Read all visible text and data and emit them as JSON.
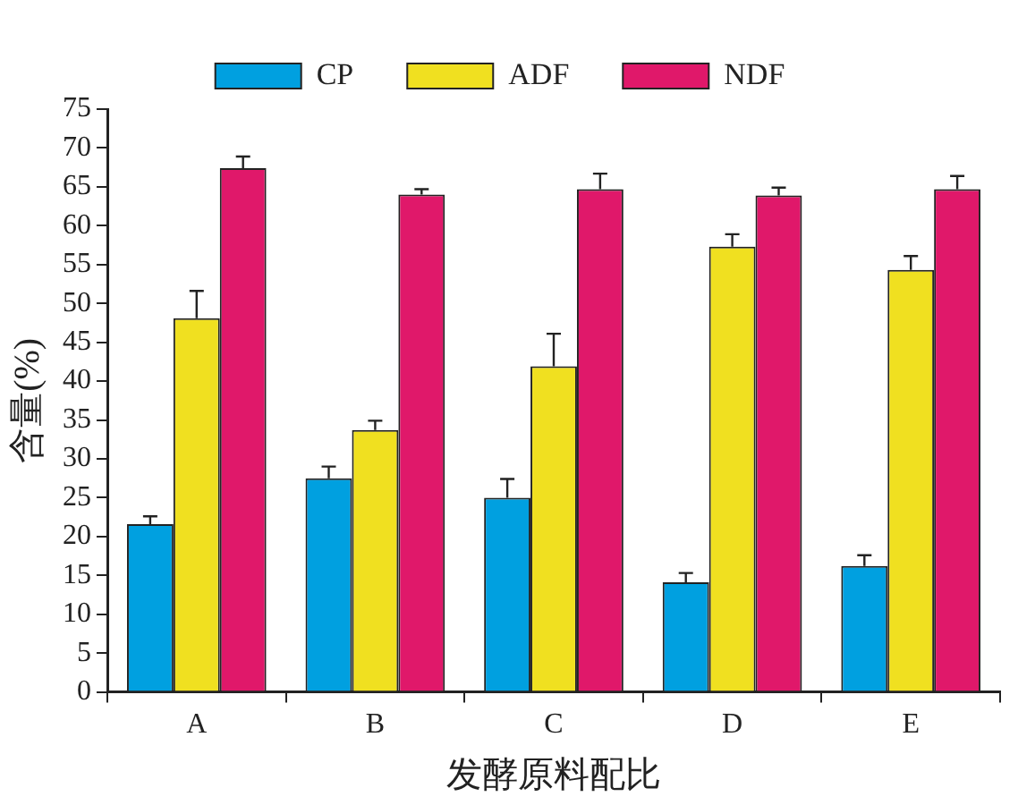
{
  "chart_data": {
    "type": "bar",
    "xlabel": "发酵原料配比",
    "ylabel": "含量(%)",
    "categories": [
      "A",
      "B",
      "C",
      "D",
      "E"
    ],
    "series": [
      {
        "name": "CP",
        "color": "#00a0e0",
        "values": [
          21.6,
          27.5,
          25.0,
          14.1,
          16.2
        ],
        "errors": [
          [
            21.6,
            22.6
          ],
          [
            27.5,
            29.0
          ],
          [
            25.0,
            27.4
          ],
          [
            14.1,
            15.3
          ],
          [
            16.2,
            17.6
          ]
        ]
      },
      {
        "name": "ADF",
        "color": "#f0e020",
        "values": [
          48.1,
          33.7,
          41.9,
          57.3,
          54.3
        ],
        "errors": [
          [
            48.1,
            51.6
          ],
          [
            33.7,
            34.9
          ],
          [
            41.9,
            46.1
          ],
          [
            57.3,
            58.9
          ],
          [
            54.3,
            56.1
          ]
        ]
      },
      {
        "name": "NDF",
        "color": "#e0186a",
        "values": [
          67.4,
          64.0,
          64.7,
          63.9,
          64.7
        ],
        "errors": [
          [
            67.4,
            68.9
          ],
          [
            64.0,
            64.7
          ],
          [
            64.7,
            66.7
          ],
          [
            63.9,
            64.9
          ],
          [
            64.7,
            66.4
          ]
        ]
      }
    ],
    "ylim": [
      0,
      75
    ],
    "yticks": [
      0,
      5,
      10,
      15,
      20,
      25,
      30,
      35,
      40,
      45,
      50,
      55,
      60,
      65,
      70,
      75
    ],
    "grid": false,
    "legend": "top"
  }
}
